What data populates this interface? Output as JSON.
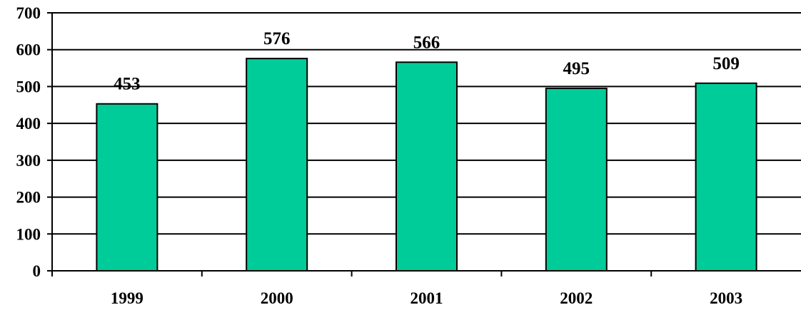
{
  "chart_data": {
    "type": "bar",
    "title": "",
    "xlabel": "",
    "ylabel": "",
    "categories": [
      "1999",
      "2000",
      "2001",
      "2002",
      "2003"
    ],
    "values": [
      453,
      576,
      566,
      495,
      509
    ],
    "data_labels": [
      "453",
      "576",
      "566",
      "495",
      "509"
    ],
    "ylim": [
      0,
      700
    ],
    "yticks": [
      "0",
      "100",
      "200",
      "300",
      "400",
      "500",
      "600",
      "700"
    ],
    "grid": true,
    "legend": "none",
    "colors": {
      "bar_fill": "#00CC99",
      "bar_stroke": "#000000",
      "grid": "#000000",
      "text": "#000000"
    }
  }
}
